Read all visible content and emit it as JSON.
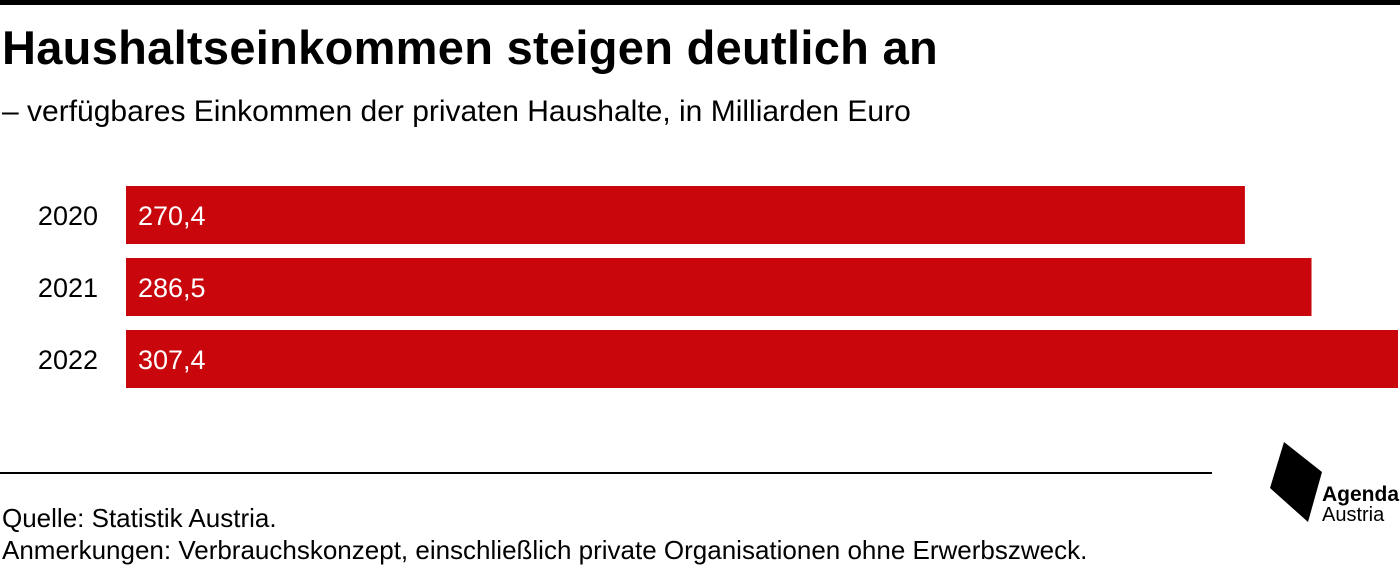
{
  "header": {
    "title": "Haushaltseinkommen steigen deutlich an",
    "subtitle": "– verfügbares Einkommen der privaten Haushalte, in Milliarden Euro"
  },
  "chart_data": {
    "type": "bar",
    "orientation": "horizontal",
    "categories": [
      "2020",
      "2021",
      "2022"
    ],
    "values": [
      270.4,
      286.5,
      307.4
    ],
    "value_labels": [
      "270,4",
      "286,5",
      "307,4"
    ],
    "title": "Haushaltseinkommen steigen deutlich an",
    "subtitle": "– verfügbares Einkommen der privaten Haushalte, in Milliarden Euro",
    "xlabel": "",
    "ylabel": "",
    "xlim": [
      0,
      307.4
    ],
    "grid": false,
    "legend": "none",
    "bar_color": "#c9060b",
    "label_color": "#ffffff"
  },
  "footer": {
    "source": "Quelle: Statistik Austria.",
    "note": "Anmerkungen: Verbrauchskonzept, einschließlich private Organisationen ohne Erwerbszweck."
  },
  "logo": {
    "line1": "Agenda",
    "line2": "Austria",
    "icon": "agenda-austria-logo-icon"
  }
}
